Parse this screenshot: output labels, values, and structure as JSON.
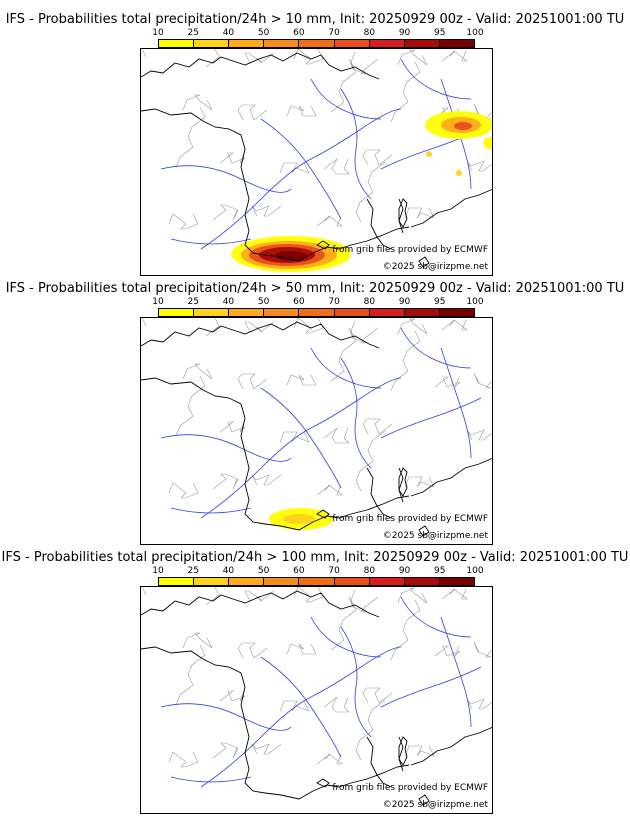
{
  "colorbar": {
    "ticks": [
      "10",
      "25",
      "40",
      "50",
      "60",
      "70",
      "80",
      "90",
      "95",
      "100"
    ],
    "colors": [
      "#ffff00",
      "#ffd21e",
      "#ffaa1e",
      "#f58c1e",
      "#f06e14",
      "#e6501e",
      "#d21e1e",
      "#aa0a0a",
      "#780000"
    ]
  },
  "credits": {
    "source": "from grib files provided by ECMWF",
    "copyright": "©2025 sb@irizpme.net"
  },
  "panels": [
    {
      "title": "IFS - Probabilities total precipitation/24h > 10 mm, Init: 20250929 00z - Valid: 20251001:00 TU",
      "intensity": "high"
    },
    {
      "title": "IFS - Probabilities total precipitation/24h > 50 mm, Init: 20250929 00z - Valid: 20251001:00 TU",
      "intensity": "medium"
    },
    {
      "title": "IFS - Probabilities total precipitation/24h > 100 mm, Init: 20250929 00z - Valid: 20251001:00 TU",
      "intensity": "none"
    }
  ]
}
